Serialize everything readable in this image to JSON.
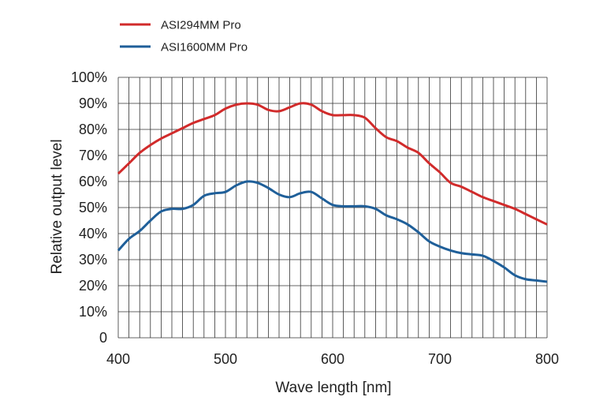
{
  "chart_data": {
    "type": "line",
    "title": "",
    "xlabel": "Wave length [nm]",
    "ylabel": "Relative output level",
    "xlim": [
      400,
      800
    ],
    "ylim": [
      0,
      100
    ],
    "x_ticks": [
      400,
      500,
      600,
      700,
      800
    ],
    "x_tick_labels": [
      "400",
      "500",
      "600",
      "700",
      "800"
    ],
    "y_ticks": [
      0,
      10,
      20,
      30,
      40,
      50,
      60,
      70,
      80,
      90,
      100
    ],
    "y_tick_labels": [
      "0",
      "10%",
      "20%",
      "30%",
      "40%",
      "50%",
      "60%",
      "70%",
      "80%",
      "90%",
      "100%"
    ],
    "grid": true,
    "legend_position": "top-left",
    "series": [
      {
        "name": "ASI294MM Pro",
        "color": "#d12b2b",
        "x": [
          400,
          410,
          420,
          430,
          440,
          450,
          460,
          470,
          480,
          490,
          500,
          510,
          520,
          530,
          540,
          550,
          560,
          570,
          580,
          590,
          600,
          610,
          620,
          630,
          640,
          650,
          660,
          670,
          680,
          690,
          700,
          710,
          720,
          730,
          740,
          750,
          760,
          770,
          780,
          790,
          800
        ],
        "values": [
          63,
          67,
          71,
          74,
          76.5,
          78.5,
          80.5,
          82.5,
          84,
          85.5,
          88,
          89.5,
          90,
          89.5,
          87.5,
          87,
          88.5,
          90,
          89.5,
          87,
          85.5,
          85.5,
          85.5,
          84.5,
          80.5,
          77,
          75.5,
          73,
          71,
          67,
          63.5,
          59.5,
          58,
          56,
          54,
          52.5,
          51,
          49.5,
          47.5,
          45.5,
          43.5
        ]
      },
      {
        "name": "ASI1600MM Pro",
        "color": "#1f5f99",
        "x": [
          400,
          410,
          420,
          430,
          440,
          450,
          460,
          470,
          480,
          490,
          500,
          510,
          520,
          530,
          540,
          550,
          560,
          570,
          580,
          590,
          600,
          610,
          620,
          630,
          640,
          650,
          660,
          670,
          680,
          690,
          700,
          710,
          720,
          730,
          740,
          750,
          760,
          770,
          780,
          790,
          800
        ],
        "values": [
          33.5,
          38,
          41,
          45,
          48.5,
          49.5,
          49.5,
          51,
          54.5,
          55.5,
          56,
          58.5,
          60,
          59.5,
          57.5,
          55,
          54,
          55.5,
          56,
          53.5,
          51,
          50.5,
          50.5,
          50.5,
          49.5,
          47,
          45.5,
          43.5,
          40.5,
          37,
          35,
          33.5,
          32.5,
          32,
          31.5,
          29.5,
          27,
          24,
          22.5,
          22,
          21.5
        ]
      }
    ]
  }
}
